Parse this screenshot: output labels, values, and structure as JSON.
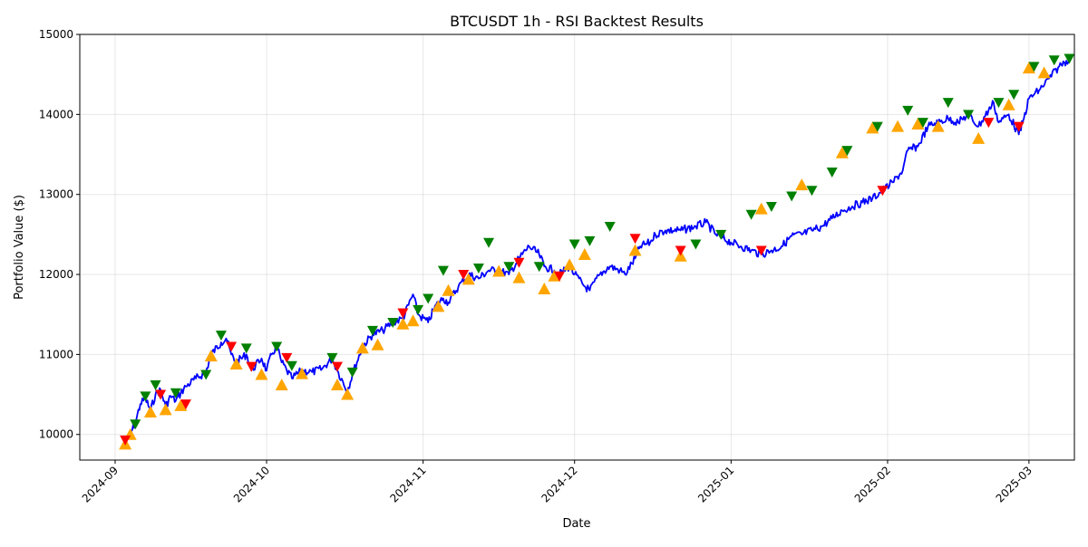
{
  "chart_data": {
    "type": "line",
    "title": "BTCUSDT 1h - RSI Backtest Results",
    "xlabel": "Date",
    "ylabel": "Portfolio Value ($)",
    "xlim": [
      "2024-08-25",
      "2025-03-10"
    ],
    "ylim": [
      9680,
      15000
    ],
    "x_ticks": [
      "2024-09",
      "2024-10",
      "2024-11",
      "2024-12",
      "2025-01",
      "2025-02",
      "2025-03"
    ],
    "x_tick_dates": [
      "2024-09-01",
      "2024-10-01",
      "2024-11-01",
      "2024-12-01",
      "2025-01-01",
      "2025-02-01",
      "2025-03-01"
    ],
    "y_ticks": [
      10000,
      11000,
      12000,
      13000,
      14000,
      15000
    ],
    "grid": true,
    "legend": "none",
    "colors": {
      "line": "#0000ff",
      "buy": "#008000",
      "sell": "#ff0000",
      "trade": "#ffa500"
    },
    "series": [
      {
        "values": [
          [
            "2024-09-03",
            9900
          ],
          [
            "2024-09-04",
            10000
          ],
          [
            "2024-09-05",
            10150
          ],
          [
            "2024-09-06",
            10380
          ],
          [
            "2024-09-07",
            10450
          ],
          [
            "2024-09-08",
            10300
          ],
          [
            "2024-09-09",
            10500
          ],
          [
            "2024-09-10",
            10560
          ],
          [
            "2024-09-11",
            10350
          ],
          [
            "2024-09-12",
            10480
          ],
          [
            "2024-09-13",
            10420
          ],
          [
            "2024-09-14",
            10520
          ],
          [
            "2024-09-15",
            10600
          ],
          [
            "2024-09-17",
            10700
          ],
          [
            "2024-09-19",
            10780
          ],
          [
            "2024-09-20",
            11000
          ],
          [
            "2024-09-22",
            11150
          ],
          [
            "2024-09-23",
            11200
          ],
          [
            "2024-09-24",
            11000
          ],
          [
            "2024-09-25",
            10900
          ],
          [
            "2024-09-27",
            11000
          ],
          [
            "2024-09-28",
            10800
          ],
          [
            "2024-09-30",
            10950
          ],
          [
            "2024-10-01",
            10800
          ],
          [
            "2024-10-02",
            11000
          ],
          [
            "2024-10-03",
            11100
          ],
          [
            "2024-10-04",
            10900
          ],
          [
            "2024-10-05",
            10800
          ],
          [
            "2024-10-06",
            10700
          ],
          [
            "2024-10-08",
            10800
          ],
          [
            "2024-10-10",
            10780
          ],
          [
            "2024-10-12",
            10820
          ],
          [
            "2024-10-14",
            10950
          ],
          [
            "2024-10-15",
            10800
          ],
          [
            "2024-10-17",
            10550
          ],
          [
            "2024-10-18",
            10750
          ],
          [
            "2024-10-20",
            11100
          ],
          [
            "2024-10-22",
            11250
          ],
          [
            "2024-10-24",
            11300
          ],
          [
            "2024-10-26",
            11400
          ],
          [
            "2024-10-28",
            11450
          ],
          [
            "2024-10-30",
            11750
          ],
          [
            "2024-10-31",
            11500
          ],
          [
            "2024-11-02",
            11400
          ],
          [
            "2024-11-03",
            11550
          ],
          [
            "2024-11-04",
            11650
          ],
          [
            "2024-11-05",
            11700
          ],
          [
            "2024-11-06",
            11650
          ],
          [
            "2024-11-08",
            11850
          ],
          [
            "2024-11-10",
            12000
          ],
          [
            "2024-11-12",
            11950
          ],
          [
            "2024-11-14",
            12050
          ],
          [
            "2024-11-16",
            12050
          ],
          [
            "2024-11-18",
            12000
          ],
          [
            "2024-11-20",
            12200
          ],
          [
            "2024-11-22",
            12350
          ],
          [
            "2024-11-24",
            12250
          ],
          [
            "2024-11-25",
            12100
          ],
          [
            "2024-11-27",
            12050
          ],
          [
            "2024-11-28",
            12000
          ],
          [
            "2024-11-30",
            12100
          ],
          [
            "2024-12-01",
            12000
          ],
          [
            "2024-12-03",
            11850
          ],
          [
            "2024-12-04",
            11800
          ],
          [
            "2024-12-06",
            12000
          ],
          [
            "2024-12-08",
            12100
          ],
          [
            "2024-12-10",
            12050
          ],
          [
            "2024-12-11",
            12000
          ],
          [
            "2024-12-13",
            12200
          ],
          [
            "2024-12-14",
            12350
          ],
          [
            "2024-12-16",
            12400
          ],
          [
            "2024-12-17",
            12500
          ],
          [
            "2024-12-19",
            12550
          ],
          [
            "2024-12-22",
            12550
          ],
          [
            "2024-12-25",
            12600
          ],
          [
            "2024-12-27",
            12650
          ],
          [
            "2024-12-29",
            12500
          ],
          [
            "2025-01-01",
            12400
          ],
          [
            "2025-01-03",
            12350
          ],
          [
            "2025-01-05",
            12300
          ],
          [
            "2025-01-07",
            12250
          ],
          [
            "2025-01-09",
            12300
          ],
          [
            "2025-01-11",
            12350
          ],
          [
            "2025-01-13",
            12480
          ],
          [
            "2025-01-15",
            12500
          ],
          [
            "2025-01-17",
            12550
          ],
          [
            "2025-01-19",
            12600
          ],
          [
            "2025-01-21",
            12700
          ],
          [
            "2025-01-23",
            12800
          ],
          [
            "2025-01-25",
            12850
          ],
          [
            "2025-01-27",
            12900
          ],
          [
            "2025-01-29",
            12950
          ],
          [
            "2025-01-31",
            13050
          ],
          [
            "2025-02-02",
            13150
          ],
          [
            "2025-02-04",
            13300
          ],
          [
            "2025-02-05",
            13550
          ],
          [
            "2025-02-07",
            13600
          ],
          [
            "2025-02-09",
            13850
          ],
          [
            "2025-02-11",
            13900
          ],
          [
            "2025-02-13",
            13950
          ],
          [
            "2025-02-15",
            13900
          ],
          [
            "2025-02-17",
            14000
          ],
          [
            "2025-02-19",
            13850
          ],
          [
            "2025-02-21",
            14050
          ],
          [
            "2025-02-22",
            14150
          ],
          [
            "2025-02-23",
            13900
          ],
          [
            "2025-02-25",
            14000
          ],
          [
            "2025-02-27",
            13750
          ],
          [
            "2025-02-28",
            13950
          ],
          [
            "2025-03-01",
            14200
          ],
          [
            "2025-03-03",
            14300
          ],
          [
            "2025-03-05",
            14450
          ],
          [
            "2025-03-07",
            14600
          ],
          [
            "2025-03-08",
            14650
          ],
          [
            "2025-03-09",
            14700
          ]
        ]
      }
    ],
    "buy_signals": [
      [
        "2024-09-05",
        10130
      ],
      [
        "2024-09-07",
        10480
      ],
      [
        "2024-09-09",
        10620
      ],
      [
        "2024-09-13",
        10520
      ],
      [
        "2024-09-19",
        10750
      ],
      [
        "2024-09-22",
        11240
      ],
      [
        "2024-09-27",
        11080
      ],
      [
        "2024-10-03",
        11100
      ],
      [
        "2024-10-06",
        10860
      ],
      [
        "2024-10-14",
        10960
      ],
      [
        "2024-10-18",
        10780
      ],
      [
        "2024-10-22",
        11300
      ],
      [
        "2024-10-26",
        11400
      ],
      [
        "2024-10-31",
        11560
      ],
      [
        "2024-11-02",
        11700
      ],
      [
        "2024-11-05",
        12050
      ],
      [
        "2024-11-12",
        12080
      ],
      [
        "2024-11-14",
        12400
      ],
      [
        "2024-11-18",
        12100
      ],
      [
        "2024-11-24",
        12100
      ],
      [
        "2024-12-01",
        12380
      ],
      [
        "2024-12-04",
        12420
      ],
      [
        "2024-12-08",
        12600
      ],
      [
        "2024-12-25",
        12380
      ],
      [
        "2024-12-30",
        12500
      ],
      [
        "2025-01-05",
        12750
      ],
      [
        "2025-01-09",
        12850
      ],
      [
        "2025-01-13",
        12980
      ],
      [
        "2025-01-17",
        13050
      ],
      [
        "2025-01-21",
        13280
      ],
      [
        "2025-01-24",
        13550
      ],
      [
        "2025-01-30",
        13850
      ],
      [
        "2025-02-05",
        14050
      ],
      [
        "2025-02-08",
        13900
      ],
      [
        "2025-02-13",
        14150
      ],
      [
        "2025-02-17",
        14000
      ],
      [
        "2025-02-23",
        14150
      ],
      [
        "2025-02-26",
        14250
      ],
      [
        "2025-03-02",
        14600
      ],
      [
        "2025-03-06",
        14680
      ],
      [
        "2025-03-09",
        14700
      ]
    ],
    "sell_signals": [
      [
        "2024-09-03",
        9930
      ],
      [
        "2024-09-10",
        10500
      ],
      [
        "2024-09-15",
        10380
      ],
      [
        "2024-09-24",
        11100
      ],
      [
        "2024-09-28",
        10850
      ],
      [
        "2024-10-05",
        10960
      ],
      [
        "2024-10-15",
        10850
      ],
      [
        "2024-10-28",
        11520
      ],
      [
        "2024-11-09",
        12000
      ],
      [
        "2024-11-20",
        12150
      ],
      [
        "2024-11-28",
        11980
      ],
      [
        "2024-12-13",
        12450
      ],
      [
        "2024-12-22",
        12300
      ],
      [
        "2025-01-07",
        12300
      ],
      [
        "2025-01-31",
        13050
      ],
      [
        "2025-02-21",
        13900
      ],
      [
        "2025-02-27",
        13850
      ]
    ],
    "trade_markers": [
      [
        "2024-09-03",
        9880
      ],
      [
        "2024-09-04",
        10000
      ],
      [
        "2024-09-08",
        10280
      ],
      [
        "2024-09-11",
        10310
      ],
      [
        "2024-09-14",
        10360
      ],
      [
        "2024-09-20",
        10980
      ],
      [
        "2024-09-25",
        10880
      ],
      [
        "2024-09-30",
        10750
      ],
      [
        "2024-10-04",
        10620
      ],
      [
        "2024-10-08",
        10760
      ],
      [
        "2024-10-15",
        10620
      ],
      [
        "2024-10-17",
        10500
      ],
      [
        "2024-10-20",
        11080
      ],
      [
        "2024-10-23",
        11120
      ],
      [
        "2024-10-28",
        11380
      ],
      [
        "2024-10-30",
        11420
      ],
      [
        "2024-11-04",
        11600
      ],
      [
        "2024-11-06",
        11800
      ],
      [
        "2024-11-10",
        11940
      ],
      [
        "2024-11-16",
        12040
      ],
      [
        "2024-11-20",
        11960
      ],
      [
        "2024-11-25",
        11820
      ],
      [
        "2024-11-27",
        11980
      ],
      [
        "2024-11-30",
        12120
      ],
      [
        "2024-12-03",
        12250
      ],
      [
        "2024-12-13",
        12300
      ],
      [
        "2024-12-22",
        12230
      ],
      [
        "2025-01-07",
        12820
      ],
      [
        "2025-01-15",
        13120
      ],
      [
        "2025-01-23",
        13520
      ],
      [
        "2025-01-29",
        13830
      ],
      [
        "2025-02-03",
        13850
      ],
      [
        "2025-02-07",
        13880
      ],
      [
        "2025-02-11",
        13850
      ],
      [
        "2025-02-19",
        13700
      ],
      [
        "2025-02-25",
        14120
      ],
      [
        "2025-03-01",
        14580
      ],
      [
        "2025-03-04",
        14520
      ]
    ]
  }
}
